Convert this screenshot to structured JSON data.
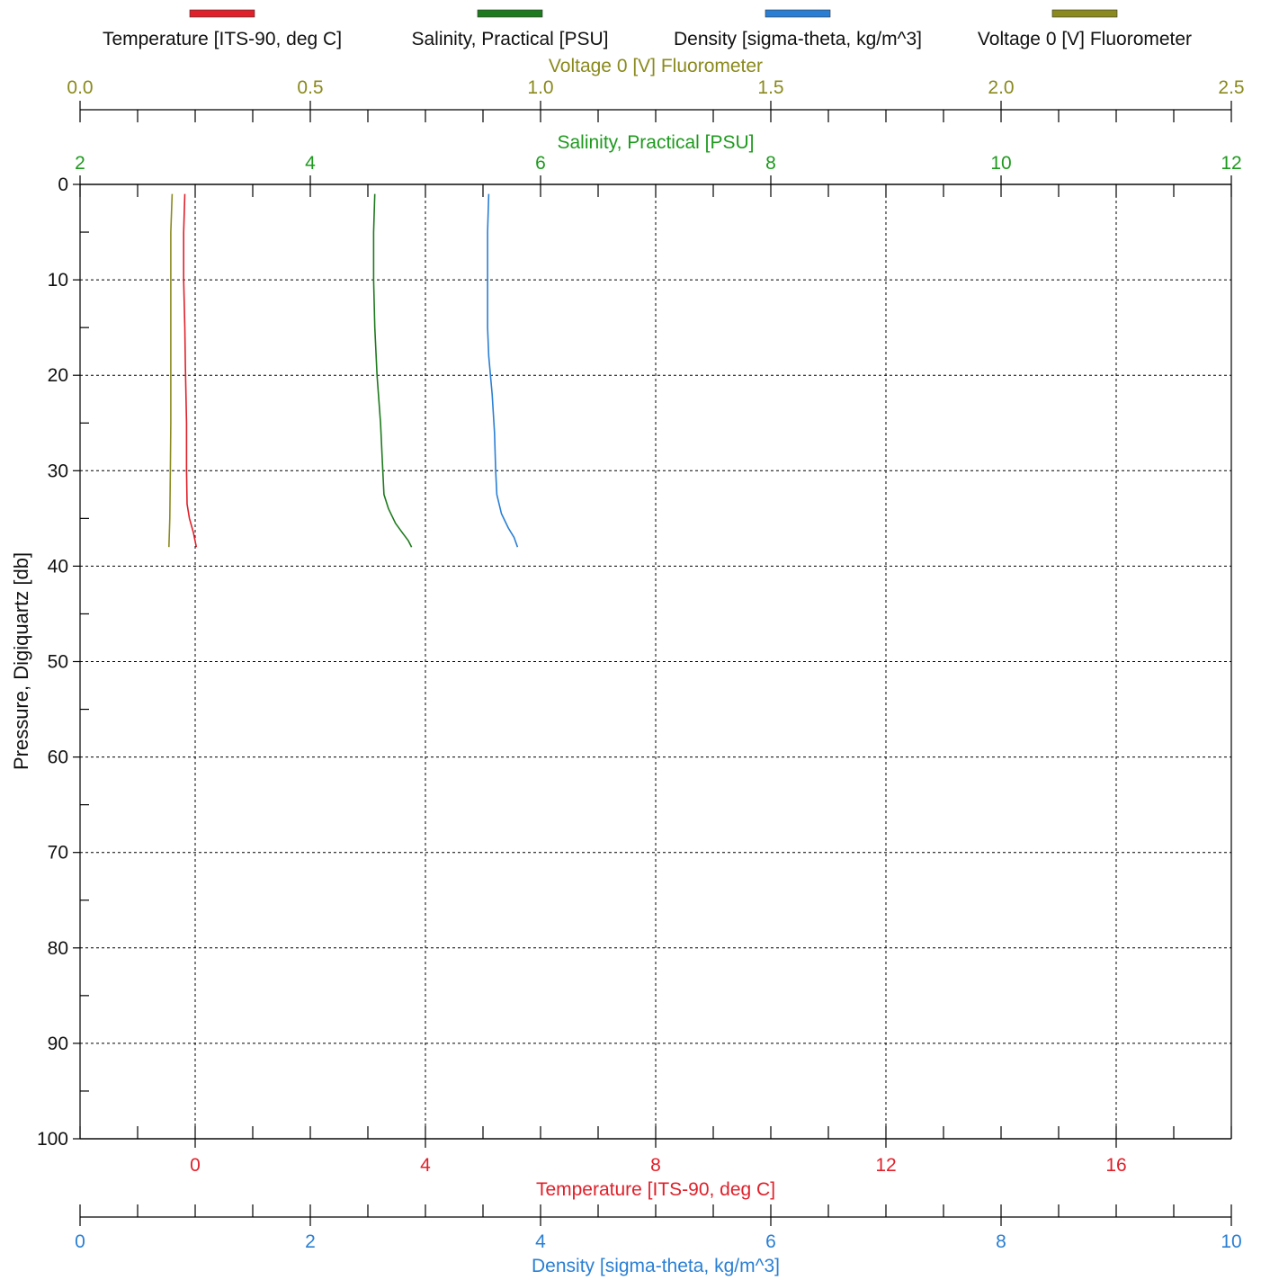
{
  "chart_data": {
    "type": "line",
    "legend_placement": "top",
    "legend": [
      {
        "name": "Temperature [ITS-90, deg C]",
        "color": "#e0202a"
      },
      {
        "name": "Salinity, Practical [PSU]",
        "color": "#1e7a1e"
      },
      {
        "name": "Density [sigma-theta, kg/m^3]",
        "color": "#2a7fd4"
      },
      {
        "name": "Voltage 0 [V] Fluorometer",
        "color": "#8a8a1e"
      }
    ],
    "y_axis": {
      "label": "Pressure, Digiquartz [db]",
      "range": [
        0,
        100
      ],
      "inverted": true,
      "ticks": [
        "0",
        "10",
        "20",
        "30",
        "40",
        "50",
        "60",
        "70",
        "80",
        "90",
        "100"
      ]
    },
    "x_axes": [
      {
        "id": "fluor",
        "label": "Voltage 0 [V] Fluorometer",
        "range": [
          0,
          2.5
        ],
        "position": "top-outer",
        "color": "#8a8a1e",
        "ticks": [
          {
            "v": 0,
            "t": "0.0"
          },
          {
            "v": 0.5,
            "t": "0.5"
          },
          {
            "v": 1,
            "t": "1.0"
          },
          {
            "v": 1.5,
            "t": "1.5"
          },
          {
            "v": 2,
            "t": "2.0"
          },
          {
            "v": 2.5,
            "t": "2.5"
          }
        ]
      },
      {
        "id": "sal",
        "label": "Salinity, Practical [PSU]",
        "range": [
          2,
          12
        ],
        "position": "top",
        "color": "#1e9a1e",
        "ticks": [
          {
            "v": 2,
            "t": "2"
          },
          {
            "v": 4,
            "t": "4"
          },
          {
            "v": 6,
            "t": "6"
          },
          {
            "v": 8,
            "t": "8"
          },
          {
            "v": 10,
            "t": "10"
          },
          {
            "v": 12,
            "t": "12"
          }
        ]
      },
      {
        "id": "temp",
        "label": "Temperature [ITS-90, deg C]",
        "range": [
          -2,
          18
        ],
        "position": "bottom",
        "color": "#e0202a",
        "ticks": [
          {
            "v": 0,
            "t": "0"
          },
          {
            "v": 4,
            "t": "4"
          },
          {
            "v": 8,
            "t": "8"
          },
          {
            "v": 12,
            "t": "12"
          },
          {
            "v": 16,
            "t": "16"
          }
        ]
      },
      {
        "id": "dens",
        "label": "Density [sigma-theta, kg/m^3]",
        "range": [
          0,
          10
        ],
        "position": "bottom-outer",
        "color": "#2a7fd4",
        "ticks": [
          {
            "v": 0,
            "t": "0"
          },
          {
            "v": 2,
            "t": "2"
          },
          {
            "v": 4,
            "t": "4"
          },
          {
            "v": 6,
            "t": "6"
          },
          {
            "v": 8,
            "t": "8"
          },
          {
            "v": 10,
            "t": "10"
          }
        ]
      }
    ],
    "grid": true,
    "series": [
      {
        "name": "Voltage 0 [V] Fluorometer",
        "axis": "fluor",
        "color": "#8a8a1e",
        "points": [
          [
            0.2,
            1
          ],
          [
            0.197,
            5
          ],
          [
            0.197,
            10
          ],
          [
            0.197,
            15
          ],
          [
            0.197,
            20
          ],
          [
            0.197,
            25
          ],
          [
            0.196,
            30
          ],
          [
            0.195,
            35
          ],
          [
            0.193,
            38
          ]
        ]
      },
      {
        "name": "Temperature [ITS-90, deg C]",
        "axis": "temp",
        "color": "#e0202a",
        "points": [
          [
            -0.18,
            1
          ],
          [
            -0.2,
            5
          ],
          [
            -0.2,
            10
          ],
          [
            -0.18,
            15
          ],
          [
            -0.17,
            19
          ],
          [
            -0.15,
            25
          ],
          [
            -0.15,
            30
          ],
          [
            -0.14,
            33.5
          ],
          [
            -0.1,
            35
          ],
          [
            -0.03,
            36.5
          ],
          [
            0.02,
            38
          ]
        ]
      },
      {
        "name": "Salinity, Practical [PSU]",
        "axis": "sal",
        "color": "#1e7a1e",
        "points": [
          [
            4.56,
            1
          ],
          [
            4.55,
            5
          ],
          [
            4.55,
            10
          ],
          [
            4.56,
            15
          ],
          [
            4.58,
            20
          ],
          [
            4.61,
            25
          ],
          [
            4.63,
            30
          ],
          [
            4.64,
            32.5
          ],
          [
            4.68,
            34
          ],
          [
            4.74,
            35.5
          ],
          [
            4.8,
            36.5
          ],
          [
            4.85,
            37.3
          ],
          [
            4.88,
            38
          ]
        ]
      },
      {
        "name": "Density [sigma-theta, kg/m^3]",
        "axis": "dens",
        "color": "#2a7fd4",
        "points": [
          [
            3.55,
            1
          ],
          [
            3.54,
            5
          ],
          [
            3.54,
            10
          ],
          [
            3.54,
            15
          ],
          [
            3.55,
            18
          ],
          [
            3.58,
            22
          ],
          [
            3.6,
            26
          ],
          [
            3.61,
            30
          ],
          [
            3.62,
            32.5
          ],
          [
            3.66,
            34.5
          ],
          [
            3.72,
            36
          ],
          [
            3.77,
            37
          ],
          [
            3.8,
            38
          ]
        ]
      }
    ]
  }
}
